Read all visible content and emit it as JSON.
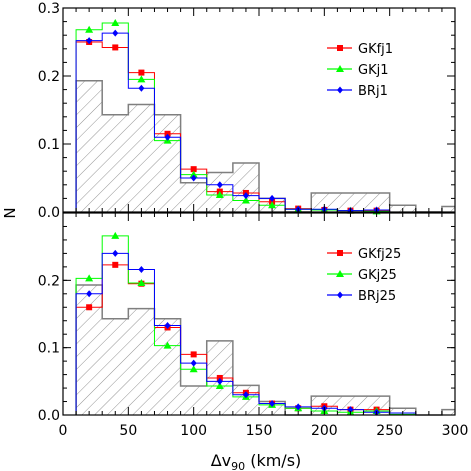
{
  "figure": {
    "xlabel_main": "Δv",
    "xlabel_sub": "90",
    "xlabel_unit": " (km/s)",
    "ylabel": "N"
  },
  "chart_data": [
    {
      "type": "histogram",
      "panel": "top",
      "xlim": [
        0,
        300
      ],
      "ylim": [
        0,
        0.3
      ],
      "bin_edges": [
        10,
        30,
        50,
        70,
        90,
        110,
        130,
        150,
        170,
        190,
        210,
        230,
        250,
        270,
        290,
        300
      ],
      "yticks": [
        0.0,
        0.1,
        0.2,
        0.3
      ],
      "ytick_labels": [
        "0.0",
        "0.1",
        "0.2",
        "0.3"
      ],
      "xticks": [
        0,
        50,
        100,
        150,
        200,
        250,
        300
      ],
      "xtick_labels": [
        "",
        "",
        "",
        "",
        "",
        "",
        ""
      ],
      "legend_position": "top-right",
      "observed": {
        "style": "gray hatched",
        "color": "#7f7f7f",
        "values": [
          0.193,
          0.143,
          0.158,
          0.143,
          0.043,
          0.058,
          0.072,
          0.02,
          0.0,
          0.028,
          0.028,
          0.028,
          0.01,
          0.0,
          0.008
        ]
      },
      "series": [
        {
          "name": "GKfj1",
          "color": "#ff0000",
          "marker": "square",
          "values": [
            0.25,
            0.242,
            0.205,
            0.115,
            0.063,
            0.03,
            0.028,
            0.015,
            0.005,
            0.003,
            0.002,
            0.002,
            0.0,
            0.0,
            0.0
          ]
        },
        {
          "name": "GKj1",
          "color": "#00ff00",
          "marker": "triangle",
          "values": [
            0.268,
            0.278,
            0.195,
            0.105,
            0.055,
            0.025,
            0.017,
            0.01,
            0.004,
            0.003,
            0.002,
            0.001,
            0.0,
            0.0,
            0.0
          ]
        },
        {
          "name": "BRj1",
          "color": "#0000ff",
          "marker": "diamond",
          "values": [
            0.252,
            0.263,
            0.182,
            0.11,
            0.05,
            0.04,
            0.024,
            0.02,
            0.004,
            0.004,
            0.002,
            0.003,
            0.0,
            0.0,
            0.0
          ]
        }
      ]
    },
    {
      "type": "histogram",
      "panel": "bottom",
      "xlim": [
        0,
        300
      ],
      "ylim": [
        0,
        0.3
      ],
      "bin_edges": [
        10,
        30,
        50,
        70,
        90,
        110,
        130,
        150,
        170,
        190,
        210,
        230,
        250,
        270,
        290,
        300
      ],
      "yticks": [
        0.0,
        0.1,
        0.2
      ],
      "ytick_labels": [
        "0.0",
        "0.1",
        "0.2"
      ],
      "xticks": [
        0,
        50,
        100,
        150,
        200,
        250,
        300
      ],
      "xtick_labels": [
        "0",
        "50",
        "100",
        "150",
        "200",
        "250",
        "300"
      ],
      "legend_position": "top-right",
      "observed": {
        "style": "gray hatched",
        "color": "#7f7f7f",
        "values": [
          0.193,
          0.143,
          0.158,
          0.143,
          0.043,
          0.11,
          0.044,
          0.02,
          0.0,
          0.028,
          0.028,
          0.028,
          0.01,
          0.0,
          0.008
        ]
      },
      "series": [
        {
          "name": "GKfj25",
          "color": "#ff0000",
          "marker": "square",
          "values": [
            0.16,
            0.223,
            0.195,
            0.13,
            0.09,
            0.055,
            0.033,
            0.017,
            0.01,
            0.013,
            0.008,
            0.008,
            0.003,
            0.0,
            0.0
          ]
        },
        {
          "name": "GKj25",
          "color": "#00ff00",
          "marker": "triangle",
          "values": [
            0.203,
            0.266,
            0.196,
            0.103,
            0.068,
            0.043,
            0.027,
            0.015,
            0.01,
            0.006,
            0.004,
            0.006,
            0.001,
            0.0,
            0.0
          ]
        },
        {
          "name": "BRj25",
          "color": "#0000ff",
          "marker": "diamond",
          "values": [
            0.18,
            0.24,
            0.216,
            0.133,
            0.077,
            0.05,
            0.03,
            0.017,
            0.012,
            0.01,
            0.008,
            0.004,
            0.003,
            0.0,
            0.0
          ]
        }
      ]
    }
  ]
}
